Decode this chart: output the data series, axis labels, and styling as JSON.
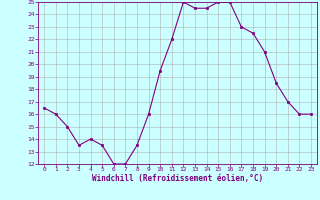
{
  "x": [
    0,
    1,
    2,
    3,
    4,
    5,
    6,
    7,
    8,
    9,
    10,
    11,
    12,
    13,
    14,
    15,
    16,
    17,
    18,
    19,
    20,
    21,
    22,
    23
  ],
  "y": [
    16.5,
    16.0,
    15.0,
    13.5,
    14.0,
    13.5,
    12.0,
    12.0,
    13.5,
    16.0,
    19.5,
    22.0,
    25.0,
    24.5,
    24.5,
    25.0,
    25.0,
    23.0,
    22.5,
    21.0,
    18.5,
    17.0,
    16.0,
    16.0
  ],
  "ylim": [
    12,
    25
  ],
  "xlim": [
    -0.5,
    23.5
  ],
  "yticks": [
    12,
    13,
    14,
    15,
    16,
    17,
    18,
    19,
    20,
    21,
    22,
    23,
    24,
    25
  ],
  "xticks": [
    0,
    1,
    2,
    3,
    4,
    5,
    6,
    7,
    8,
    9,
    10,
    11,
    12,
    13,
    14,
    15,
    16,
    17,
    18,
    19,
    20,
    21,
    22,
    23
  ],
  "xlabel": "Windchill (Refroidissement éolien,°C)",
  "line_color": "#800080",
  "marker_color": "#800080",
  "bg_color": "#ccffff",
  "grid_color": "#b0b0b0",
  "axis_label_color": "#800080",
  "tick_label_color": "#800080",
  "spine_color": "#800080"
}
